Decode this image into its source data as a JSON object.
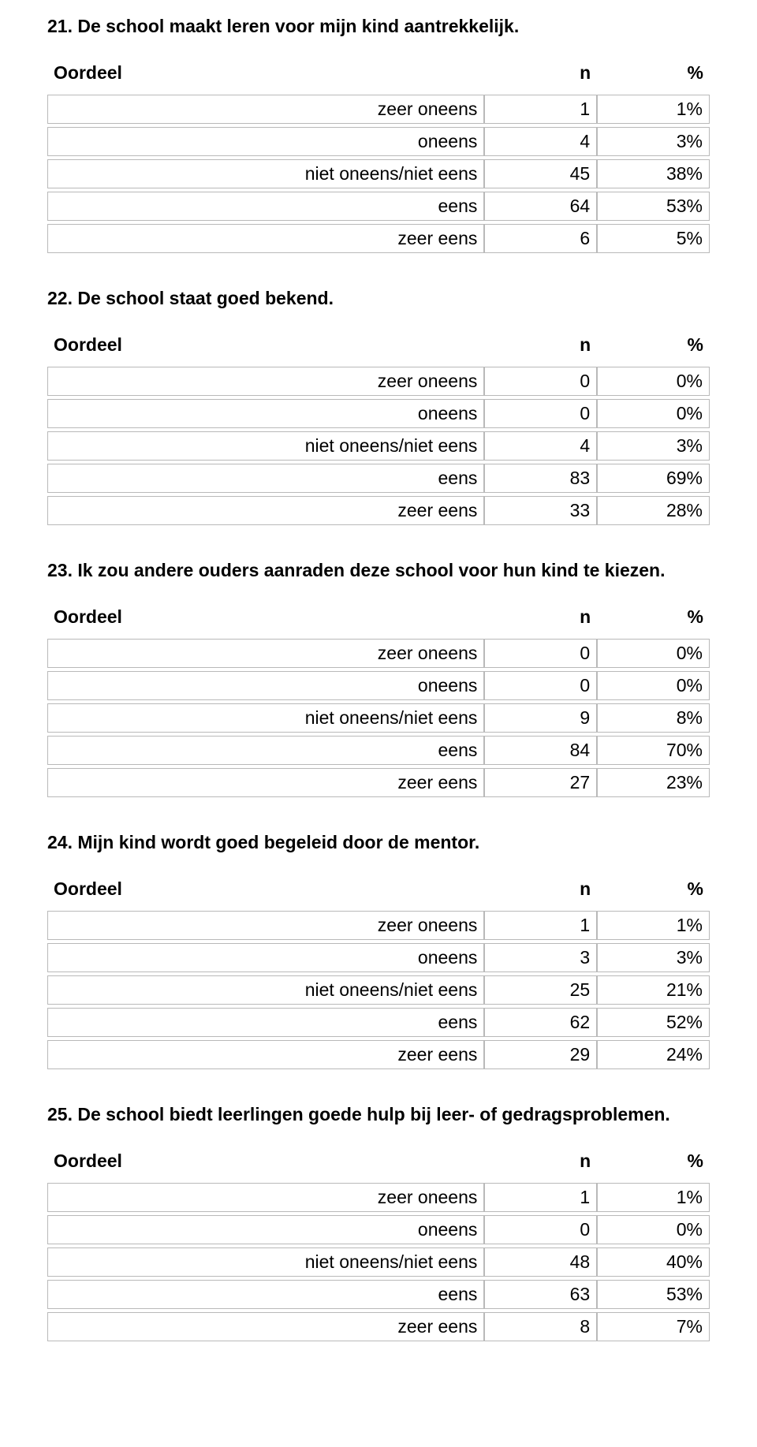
{
  "columns": {
    "label": "Oordeel",
    "n": "n",
    "pct": "%"
  },
  "row_labels": {
    "zeer_oneens": "zeer oneens",
    "oneens": "oneens",
    "niet": "niet oneens/niet eens",
    "eens": "eens",
    "zeer_eens": "zeer eens"
  },
  "table_style": {
    "border_color": "#b9b9b9",
    "background_color": "#ffffff",
    "font_size_pt": 17,
    "header_font_weight": "bold",
    "cell_font_weight": "normal",
    "text_align_values": "right",
    "col_widths_pct": [
      66,
      17,
      17
    ]
  },
  "sections": [
    {
      "title": "21. De school maakt leren voor mijn kind aantrekkelijk.",
      "rows": [
        {
          "n": "1",
          "pct": "1%"
        },
        {
          "n": "4",
          "pct": "3%"
        },
        {
          "n": "45",
          "pct": "38%"
        },
        {
          "n": "64",
          "pct": "53%"
        },
        {
          "n": "6",
          "pct": "5%"
        }
      ]
    },
    {
      "title": "22. De school staat goed bekend.",
      "rows": [
        {
          "n": "0",
          "pct": "0%"
        },
        {
          "n": "0",
          "pct": "0%"
        },
        {
          "n": "4",
          "pct": "3%"
        },
        {
          "n": "83",
          "pct": "69%"
        },
        {
          "n": "33",
          "pct": "28%"
        }
      ]
    },
    {
      "title": "23. Ik zou andere ouders aanraden deze school voor hun kind te kiezen.",
      "rows": [
        {
          "n": "0",
          "pct": "0%"
        },
        {
          "n": "0",
          "pct": "0%"
        },
        {
          "n": "9",
          "pct": "8%"
        },
        {
          "n": "84",
          "pct": "70%"
        },
        {
          "n": "27",
          "pct": "23%"
        }
      ]
    },
    {
      "title": "24. Mijn kind wordt goed begeleid door de mentor.",
      "rows": [
        {
          "n": "1",
          "pct": "1%"
        },
        {
          "n": "3",
          "pct": "3%"
        },
        {
          "n": "25",
          "pct": "21%"
        },
        {
          "n": "62",
          "pct": "52%"
        },
        {
          "n": "29",
          "pct": "24%"
        }
      ]
    },
    {
      "title": "25. De school biedt leerlingen goede hulp bij leer- of gedragsproblemen.",
      "rows": [
        {
          "n": "1",
          "pct": "1%"
        },
        {
          "n": "0",
          "pct": "0%"
        },
        {
          "n": "48",
          "pct": "40%"
        },
        {
          "n": "63",
          "pct": "53%"
        },
        {
          "n": "8",
          "pct": "7%"
        }
      ]
    }
  ]
}
